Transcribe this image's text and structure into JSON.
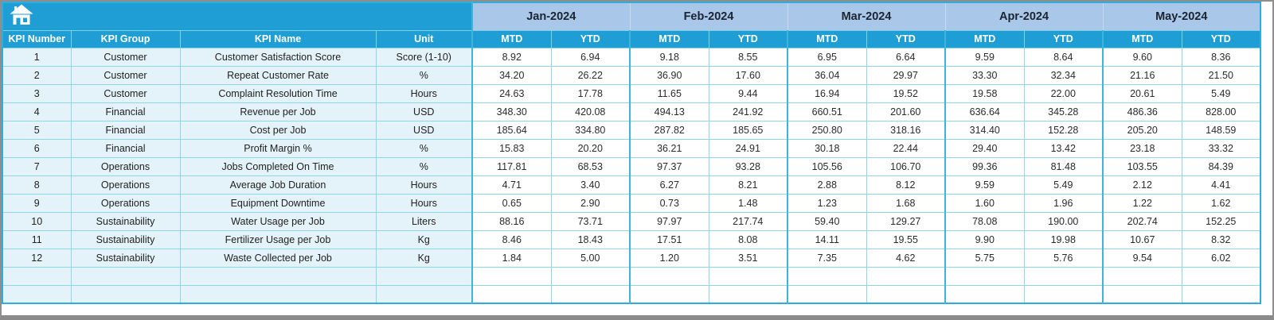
{
  "header": {
    "months": [
      "Jan-2024",
      "Feb-2024",
      "Mar-2024",
      "Apr-2024",
      "May-2024"
    ],
    "period_labels": [
      "MTD",
      "YTD"
    ],
    "label_columns": [
      "KPI Number",
      "KPI Group",
      "KPI Name",
      "Unit"
    ],
    "home_icon": "home"
  },
  "rows": [
    {
      "number": "1",
      "group": "Customer",
      "name": "Customer Satisfaction Score",
      "unit": "Score (1-10)",
      "values": [
        "8.92",
        "6.94",
        "9.18",
        "8.55",
        "6.95",
        "6.64",
        "9.59",
        "8.64",
        "9.60",
        "8.36"
      ]
    },
    {
      "number": "2",
      "group": "Customer",
      "name": "Repeat Customer Rate",
      "unit": "%",
      "values": [
        "34.20",
        "26.22",
        "36.90",
        "17.60",
        "36.04",
        "29.97",
        "33.30",
        "32.34",
        "21.16",
        "21.50"
      ]
    },
    {
      "number": "3",
      "group": "Customer",
      "name": "Complaint Resolution Time",
      "unit": "Hours",
      "values": [
        "24.63",
        "17.78",
        "11.65",
        "9.44",
        "16.94",
        "19.52",
        "19.58",
        "22.00",
        "20.61",
        "5.49"
      ]
    },
    {
      "number": "4",
      "group": "Financial",
      "name": "Revenue per Job",
      "unit": "USD",
      "values": [
        "348.30",
        "420.08",
        "494.13",
        "241.92",
        "660.51",
        "201.60",
        "636.64",
        "345.28",
        "486.36",
        "828.00"
      ]
    },
    {
      "number": "5",
      "group": "Financial",
      "name": "Cost per Job",
      "unit": "USD",
      "values": [
        "185.64",
        "334.80",
        "287.82",
        "185.65",
        "250.80",
        "318.16",
        "314.40",
        "152.28",
        "205.20",
        "148.59"
      ]
    },
    {
      "number": "6",
      "group": "Financial",
      "name": "Profit Margin %",
      "unit": "%",
      "values": [
        "15.83",
        "20.20",
        "36.21",
        "24.91",
        "30.18",
        "22.44",
        "29.40",
        "13.42",
        "23.18",
        "33.32"
      ]
    },
    {
      "number": "7",
      "group": "Operations",
      "name": "Jobs Completed On Time",
      "unit": "%",
      "values": [
        "117.81",
        "68.53",
        "97.37",
        "93.28",
        "105.56",
        "106.70",
        "99.36",
        "81.48",
        "103.55",
        "84.39"
      ]
    },
    {
      "number": "8",
      "group": "Operations",
      "name": "Average Job Duration",
      "unit": "Hours",
      "values": [
        "4.71",
        "3.40",
        "6.27",
        "8.21",
        "2.88",
        "8.12",
        "9.59",
        "5.49",
        "2.12",
        "4.41"
      ]
    },
    {
      "number": "9",
      "group": "Operations",
      "name": "Equipment Downtime",
      "unit": "Hours",
      "values": [
        "0.65",
        "2.90",
        "0.73",
        "1.48",
        "1.23",
        "1.68",
        "1.60",
        "1.96",
        "1.22",
        "1.62"
      ]
    },
    {
      "number": "10",
      "group": "Sustainability",
      "name": "Water Usage per Job",
      "unit": "Liters",
      "values": [
        "88.16",
        "73.71",
        "97.97",
        "217.74",
        "59.40",
        "129.27",
        "78.08",
        "190.00",
        "202.74",
        "152.25"
      ]
    },
    {
      "number": "11",
      "group": "Sustainability",
      "name": "Fertilizer Usage per Job",
      "unit": "Kg",
      "values": [
        "8.46",
        "18.43",
        "17.51",
        "8.08",
        "14.11",
        "19.55",
        "9.90",
        "19.98",
        "10.67",
        "8.32"
      ]
    },
    {
      "number": "12",
      "group": "Sustainability",
      "name": "Waste Collected per Job",
      "unit": "Kg",
      "values": [
        "1.84",
        "5.00",
        "1.20",
        "3.51",
        "7.35",
        "4.62",
        "5.75",
        "5.76",
        "9.54",
        "6.02"
      ]
    }
  ],
  "empty_row_count": 2,
  "colors": {
    "header_cyan": "#1f9ed6",
    "month_band": "#a9c7e8",
    "label_cell_tint": "#e4f2f9",
    "grid_line": "#8ed7e6",
    "group_divider": "#3db4da",
    "frame_border": "#8e8e8e"
  }
}
